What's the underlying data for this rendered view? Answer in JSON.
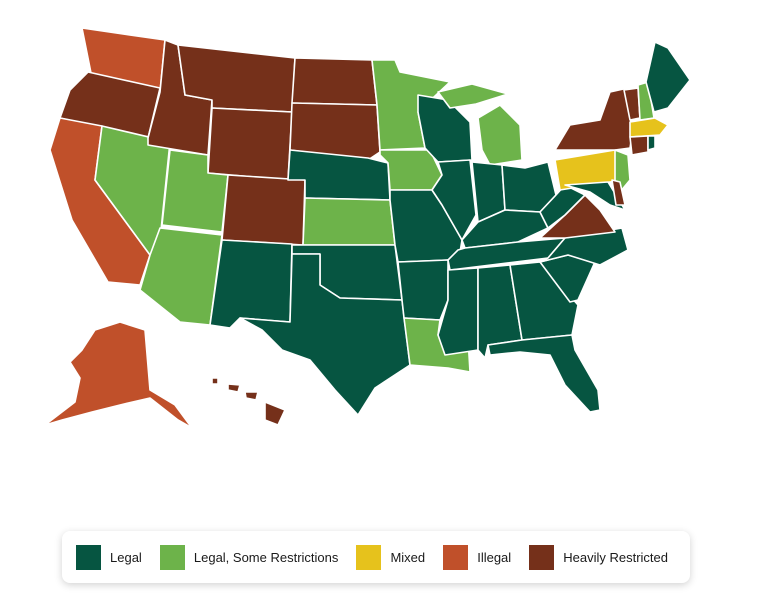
{
  "colors": {
    "legal": "#065541",
    "legal_some_restrictions": "#6db34a",
    "mixed": "#e6c21c",
    "illegal": "#c0502a",
    "heavily_restricted": "#75301a"
  },
  "legend": [
    {
      "key": "legal",
      "label": "Legal",
      "color": "#065541"
    },
    {
      "key": "legal_some_restrictions",
      "label": "Legal, Some Restrictions",
      "color": "#6db34a"
    },
    {
      "key": "mixed",
      "label": "Mixed",
      "color": "#e6c21c"
    },
    {
      "key": "illegal",
      "label": "Illegal",
      "color": "#c0502a"
    },
    {
      "key": "heavily_restricted",
      "label": "Heavily Restricted",
      "color": "#75301a"
    }
  ],
  "states": {
    "WA": "illegal",
    "OR": "heavily_restricted",
    "CA": "illegal",
    "AK": "illegal",
    "HI": "heavily_restricted",
    "ID": "heavily_restricted",
    "MT": "heavily_restricted",
    "WY": "heavily_restricted",
    "ND": "heavily_restricted",
    "SD": "heavily_restricted",
    "CO": "heavily_restricted",
    "VA": "heavily_restricted",
    "NY": "heavily_restricted",
    "VT": "heavily_restricted",
    "CT": "heavily_restricted",
    "DE": "heavily_restricted",
    "NV": "legal_some_restrictions",
    "UT": "legal_some_restrictions",
    "AZ": "legal_some_restrictions",
    "KS": "legal_some_restrictions",
    "MN": "legal_some_restrictions",
    "IA": "legal_some_restrictions",
    "MI": "legal_some_restrictions",
    "LA": "legal_some_restrictions",
    "NH": "legal_some_restrictions",
    "NJ": "legal_some_restrictions",
    "PA": "mixed",
    "MA": "mixed",
    "NM": "legal",
    "TX": "legal",
    "OK": "legal",
    "NE": "legal",
    "MO": "legal",
    "AR": "legal",
    "MS": "legal",
    "AL": "legal",
    "GA": "legal",
    "FL": "legal",
    "SC": "legal",
    "NC": "legal",
    "TN": "legal",
    "KY": "legal",
    "WV": "legal",
    "OH": "legal",
    "IN": "legal",
    "IL": "legal",
    "WI": "legal",
    "MD": "legal",
    "ME": "legal",
    "RI": "legal"
  }
}
